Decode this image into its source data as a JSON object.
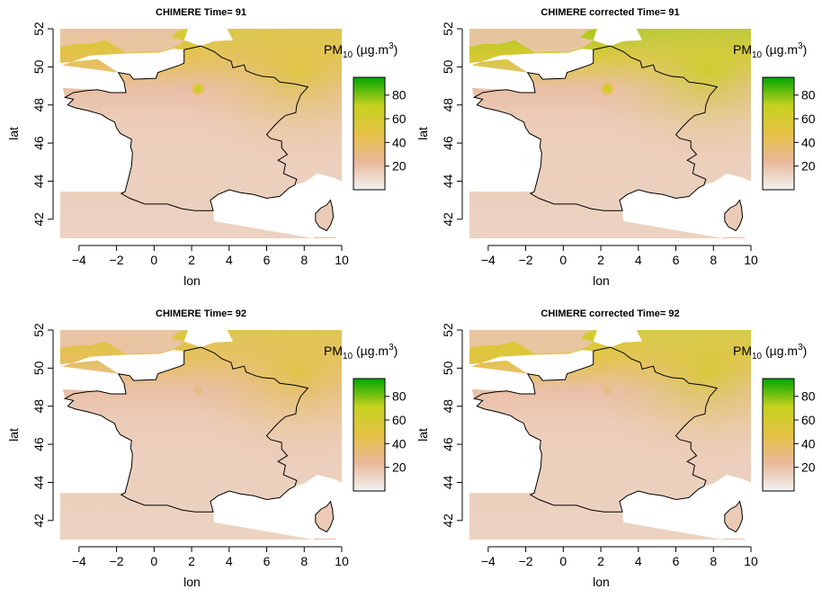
{
  "figure": {
    "panels": [
      {
        "title": "CHIMERE Time= 91",
        "xlabel": "lon",
        "ylabel": "lat",
        "legend_title": "PM",
        "legend_title_sub": "10",
        "legend_title_units": " (µg.m",
        "legend_title_sup": "3",
        "legend_title_close": ")",
        "hotspot": "strong",
        "north_level": 60
      },
      {
        "title": "CHIMERE corrected Time= 91",
        "xlabel": "lon",
        "ylabel": "lat",
        "legend_title": "PM",
        "legend_title_sub": "10",
        "legend_title_units": " (µg.m",
        "legend_title_sup": "3",
        "legend_title_close": ")",
        "hotspot": "strong",
        "north_level": 75
      },
      {
        "title": "CHIMERE Time= 92",
        "xlabel": "lon",
        "ylabel": "lat",
        "legend_title": "PM",
        "legend_title_sub": "10",
        "legend_title_units": " (µg.m",
        "legend_title_sup": "3",
        "legend_title_close": ")",
        "hotspot": "weak",
        "north_level": 55
      },
      {
        "title": "CHIMERE corrected Time= 92",
        "xlabel": "lon",
        "ylabel": "lat",
        "legend_title": "PM",
        "legend_title_sub": "10",
        "legend_title_units": " (µg.m",
        "legend_title_sup": "3",
        "legend_title_close": ")",
        "hotspot": "weak",
        "north_level": 65
      }
    ]
  },
  "chart_data": [
    {
      "type": "heatmap",
      "title": "CHIMERE Time= 91",
      "xlabel": "lon",
      "ylabel": "lat",
      "xlim": [
        -5,
        10
      ],
      "ylim": [
        41,
        52
      ],
      "xticks": [
        "-4",
        "-2",
        "0",
        "2",
        "4",
        "6",
        "8",
        "10"
      ],
      "yticks": [
        "42",
        "44",
        "46",
        "48",
        "50",
        "52"
      ],
      "colorbar": {
        "title": "PM10 (µg.m3)",
        "range": [
          0,
          95
        ],
        "ticks": [
          "20",
          "40",
          "60",
          "80"
        ]
      },
      "colors": [
        "#f2f2f2",
        "#e8b89a",
        "#e5c244",
        "#c6d21e",
        "#00a600"
      ]
    },
    {
      "type": "heatmap",
      "title": "CHIMERE corrected Time= 91",
      "xlabel": "lon",
      "ylabel": "lat",
      "xlim": [
        -5,
        10
      ],
      "ylim": [
        41,
        52
      ],
      "xticks": [
        "-4",
        "-2",
        "0",
        "2",
        "4",
        "6",
        "8",
        "10"
      ],
      "yticks": [
        "42",
        "44",
        "46",
        "48",
        "50",
        "52"
      ],
      "colorbar": {
        "title": "PM10 (µg.m3)",
        "range": [
          0,
          95
        ],
        "ticks": [
          "20",
          "40",
          "60",
          "80"
        ]
      },
      "colors": [
        "#f2f2f2",
        "#e8b89a",
        "#e5c244",
        "#c6d21e",
        "#00a600"
      ]
    },
    {
      "type": "heatmap",
      "title": "CHIMERE Time= 92",
      "xlabel": "lon",
      "ylabel": "lat",
      "xlim": [
        -5,
        10
      ],
      "ylim": [
        41,
        52
      ],
      "xticks": [
        "-4",
        "-2",
        "0",
        "2",
        "4",
        "6",
        "8",
        "10"
      ],
      "yticks": [
        "42",
        "44",
        "46",
        "48",
        "50",
        "52"
      ],
      "colorbar": {
        "title": "PM10 (µg.m3)",
        "range": [
          0,
          95
        ],
        "ticks": [
          "20",
          "40",
          "60",
          "80"
        ]
      },
      "colors": [
        "#f2f2f2",
        "#e8b89a",
        "#e5c244",
        "#c6d21e",
        "#00a600"
      ]
    },
    {
      "type": "heatmap",
      "title": "CHIMERE corrected Time= 92",
      "xlabel": "lon",
      "ylabel": "lat",
      "xlim": [
        -5,
        10
      ],
      "ylim": [
        41,
        52
      ],
      "xticks": [
        "-4",
        "-2",
        "0",
        "2",
        "4",
        "6",
        "8",
        "10"
      ],
      "yticks": [
        "42",
        "44",
        "46",
        "48",
        "50",
        "52"
      ],
      "colorbar": {
        "title": "PM10 (µg.m3)",
        "range": [
          0,
          95
        ],
        "ticks": [
          "20",
          "40",
          "60",
          "80"
        ]
      },
      "colors": [
        "#f2f2f2",
        "#e8b89a",
        "#e5c244",
        "#c6d21e",
        "#00a600"
      ]
    }
  ],
  "france_outline": [
    [
      2.5,
      51.1
    ],
    [
      1.6,
      50.9
    ],
    [
      1.6,
      50.2
    ],
    [
      1.4,
      50.1
    ],
    [
      0.2,
      49.7
    ],
    [
      0.1,
      49.4
    ],
    [
      -1.1,
      49.35
    ],
    [
      -1.3,
      49.6
    ],
    [
      -1.9,
      49.7
    ],
    [
      -1.6,
      49.2
    ],
    [
      -1.5,
      48.65
    ],
    [
      -2.3,
      48.65
    ],
    [
      -3.0,
      48.8
    ],
    [
      -3.6,
      48.75
    ],
    [
      -4.3,
      48.65
    ],
    [
      -4.75,
      48.4
    ],
    [
      -4.3,
      48.3
    ],
    [
      -4.6,
      48.0
    ],
    [
      -4.2,
      47.85
    ],
    [
      -3.5,
      47.7
    ],
    [
      -2.8,
      47.5
    ],
    [
      -2.5,
      47.3
    ],
    [
      -2.1,
      47.1
    ],
    [
      -2.0,
      46.8
    ],
    [
      -1.8,
      46.5
    ],
    [
      -1.2,
      46.2
    ],
    [
      -1.25,
      45.8
    ],
    [
      -1.15,
      45.5
    ],
    [
      -1.2,
      44.8
    ],
    [
      -1.4,
      44.0
    ],
    [
      -1.55,
      43.45
    ],
    [
      -1.75,
      43.35
    ],
    [
      -1.3,
      43.1
    ],
    [
      -0.5,
      42.8
    ],
    [
      0.7,
      42.8
    ],
    [
      1.5,
      42.55
    ],
    [
      2.2,
      42.45
    ],
    [
      3.15,
      42.45
    ],
    [
      3.0,
      43.0
    ],
    [
      3.4,
      43.3
    ],
    [
      4.0,
      43.55
    ],
    [
      4.6,
      43.4
    ],
    [
      5.3,
      43.3
    ],
    [
      6.0,
      43.1
    ],
    [
      6.7,
      43.2
    ],
    [
      7.2,
      43.65
    ],
    [
      7.5,
      43.8
    ],
    [
      7.6,
      44.1
    ],
    [
      6.9,
      44.4
    ],
    [
      7.0,
      44.9
    ],
    [
      6.6,
      45.1
    ],
    [
      7.1,
      45.4
    ],
    [
      6.8,
      45.75
    ],
    [
      6.8,
      46.1
    ],
    [
      6.2,
      46.25
    ],
    [
      6.0,
      46.45
    ],
    [
      6.4,
      46.9
    ],
    [
      6.7,
      47.2
    ],
    [
      7.0,
      47.45
    ],
    [
      7.55,
      47.6
    ],
    [
      7.6,
      48.0
    ],
    [
      7.8,
      48.5
    ],
    [
      8.2,
      48.95
    ],
    [
      7.5,
      49.1
    ],
    [
      6.7,
      49.2
    ],
    [
      6.4,
      49.45
    ],
    [
      5.8,
      49.5
    ],
    [
      5.4,
      49.6
    ],
    [
      4.9,
      49.8
    ],
    [
      4.8,
      50.1
    ],
    [
      4.2,
      49.95
    ],
    [
      4.1,
      50.3
    ],
    [
      3.6,
      50.5
    ],
    [
      3.2,
      50.8
    ],
    [
      2.5,
      51.1
    ]
  ],
  "corsica_outline": [
    [
      9.4,
      43.0
    ],
    [
      9.5,
      42.6
    ],
    [
      9.55,
      42.1
    ],
    [
      9.4,
      41.7
    ],
    [
      9.2,
      41.4
    ],
    [
      8.8,
      41.6
    ],
    [
      8.6,
      41.9
    ],
    [
      8.6,
      42.3
    ],
    [
      8.9,
      42.6
    ],
    [
      9.2,
      42.75
    ],
    [
      9.4,
      43.0
    ]
  ],
  "uk_outline": [
    [
      -5.0,
      51.05
    ],
    [
      -4.2,
      51.2
    ],
    [
      -3.4,
      51.2
    ],
    [
      -2.6,
      51.4
    ],
    [
      -1.5,
      50.75
    ],
    [
      -0.4,
      50.8
    ],
    [
      0.3,
      50.8
    ],
    [
      1.0,
      51.0
    ],
    [
      1.4,
      51.2
    ],
    [
      1.6,
      51.4
    ],
    [
      0.9,
      51.55
    ],
    [
      1.3,
      51.9
    ],
    [
      1.8,
      52.0
    ],
    [
      1.8,
      52.0
    ],
    [
      -5.0,
      52.0
    ]
  ],
  "spain_outline": [
    [
      -5.0,
      43.45
    ],
    [
      -1.75,
      43.35
    ],
    [
      -1.3,
      43.1
    ],
    [
      -0.5,
      42.8
    ],
    [
      0.7,
      42.8
    ],
    [
      1.5,
      42.55
    ],
    [
      2.2,
      42.45
    ],
    [
      3.15,
      42.45
    ],
    [
      3.2,
      41.9
    ],
    [
      2.0,
      41.25
    ],
    [
      1.0,
      41.05
    ],
    [
      0.7,
      40.9
    ],
    [
      -5.0,
      40.9
    ]
  ],
  "italy_outline": [
    [
      7.55,
      43.8
    ],
    [
      8.0,
      43.95
    ],
    [
      8.7,
      44.4
    ],
    [
      9.5,
      44.2
    ],
    [
      10.0,
      44.0
    ],
    [
      10.0,
      52.0
    ],
    [
      7.0,
      52.0
    ],
    [
      6.1,
      51.85
    ],
    [
      5.6,
      51.8
    ],
    [
      4.2,
      51.4
    ],
    [
      3.2,
      51.35
    ],
    [
      2.5,
      51.1
    ],
    [
      3.2,
      50.8
    ],
    [
      3.6,
      50.5
    ],
    [
      4.1,
      50.3
    ],
    [
      4.2,
      49.95
    ],
    [
      4.8,
      50.1
    ],
    [
      4.9,
      49.8
    ],
    [
      5.4,
      49.6
    ],
    [
      5.8,
      49.5
    ],
    [
      6.4,
      49.45
    ],
    [
      6.7,
      49.2
    ],
    [
      7.5,
      49.1
    ],
    [
      8.2,
      48.95
    ],
    [
      7.8,
      48.5
    ],
    [
      7.6,
      48.0
    ],
    [
      7.55,
      47.6
    ],
    [
      7.0,
      47.45
    ],
    [
      6.7,
      47.2
    ],
    [
      6.4,
      46.9
    ],
    [
      6.0,
      46.45
    ],
    [
      6.2,
      46.25
    ],
    [
      6.8,
      46.1
    ],
    [
      6.8,
      45.75
    ],
    [
      7.1,
      45.4
    ],
    [
      6.6,
      45.1
    ],
    [
      7.0,
      44.9
    ],
    [
      6.9,
      44.4
    ],
    [
      7.6,
      44.1
    ],
    [
      7.55,
      43.8
    ]
  ],
  "sardinia_outline": [
    [
      8.5,
      41.05
    ],
    [
      9.7,
      41.05
    ],
    [
      9.6,
      40.9
    ],
    [
      8.5,
      40.9
    ]
  ]
}
